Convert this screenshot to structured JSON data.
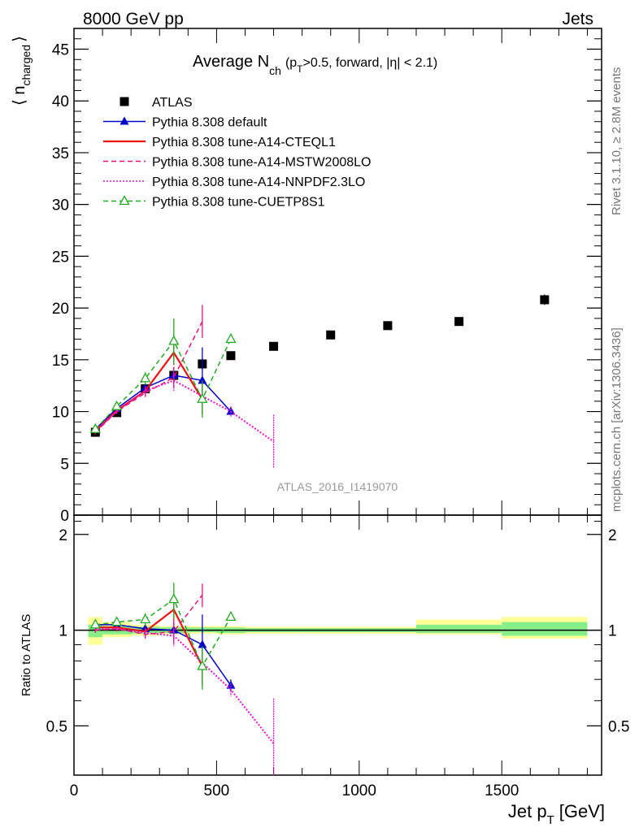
{
  "header": {
    "left": "8000 GeV pp",
    "right": "Jets"
  },
  "side_labels": {
    "rivet": "Rivet 3.1.10, ≥ 2.8M events",
    "mcplots": "mcplots.cern.ch [arXiv:1306.3436]"
  },
  "chart_data": [
    {
      "type": "scatter",
      "panel": "main",
      "title_main": "Average N",
      "title_sub": "ch",
      "title_cut": "(p",
      "title_cut_sub": "T",
      "title_rest": ">0.5, forward, |η| < 2.1)",
      "ylabel": "⟨ n",
      "ylabel_sub": "charged",
      "ylabel_close": "⟩",
      "watermark": "ATLAS_2016_I1419070",
      "xlim": [
        0,
        1850
      ],
      "ylim": [
        0,
        47
      ],
      "yticks": [
        0,
        5,
        10,
        15,
        20,
        25,
        30,
        35,
        40,
        45
      ],
      "grid": false,
      "legend_position": "top-left",
      "series": [
        {
          "name": "ATLAS",
          "style": "data",
          "color": "#000000",
          "x": [
            75,
            150,
            250,
            350,
            450,
            550,
            700,
            900,
            1100,
            1350,
            1650
          ],
          "y": [
            8.0,
            9.9,
            12.2,
            13.5,
            14.6,
            15.4,
            16.3,
            17.4,
            18.3,
            18.7,
            20.8
          ],
          "yerr": [
            0.2,
            0.2,
            0.3,
            0.4,
            0.5,
            0.4,
            0.3,
            0.3,
            0.3,
            0.4,
            0.5
          ]
        },
        {
          "name": "Pythia 8.308 default",
          "style": "solid-triangle",
          "color": "#0000cc",
          "x": [
            75,
            150,
            250,
            350,
            450,
            550
          ],
          "y": [
            8.3,
            10.3,
            12.3,
            13.5,
            13.0,
            10.0
          ],
          "yerr": [
            0.2,
            0.2,
            0.4,
            0.8,
            3.2,
            0.4
          ]
        },
        {
          "name": "Pythia 8.308 tune-A14-CTEQL1",
          "style": "solid",
          "color": "#ee1111",
          "x": [
            75,
            150,
            250,
            350,
            450
          ],
          "y": [
            8.1,
            10.1,
            12.0,
            15.7,
            11.2
          ],
          "yerr": [
            0.2,
            0.2,
            0.4,
            1.2,
            1.5
          ]
        },
        {
          "name": "Pythia 8.308 tune-A14-MSTW2008LO",
          "style": "dashed",
          "color": "#ee1177",
          "x": [
            75,
            150,
            250,
            350,
            450
          ],
          "y": [
            8.0,
            10.0,
            11.8,
            13.3,
            18.7
          ],
          "yerr": [
            0.2,
            0.2,
            0.4,
            1.0,
            1.6
          ]
        },
        {
          "name": "Pythia 8.308 tune-A14-NNPDF2.3LO",
          "style": "dotted",
          "color": "#ee11cc",
          "x": [
            75,
            150,
            250,
            350,
            450,
            550,
            700
          ],
          "y": [
            8.1,
            10.0,
            12.0,
            13.0,
            11.5,
            10.0,
            7.1
          ],
          "yerr": [
            0.2,
            0.2,
            0.4,
            1.0,
            1.2,
            0.5,
            2.6
          ]
        },
        {
          "name": "Pythia 8.308 tune-CUETP8S1",
          "style": "dashed-open-triangle",
          "color": "#22aa22",
          "x": [
            75,
            150,
            250,
            350,
            450,
            550
          ],
          "y": [
            8.3,
            10.5,
            13.2,
            16.8,
            11.2,
            17.0
          ],
          "yerr": [
            0.2,
            0.3,
            0.6,
            2.2,
            1.8,
            0.3
          ]
        }
      ]
    },
    {
      "type": "scatter",
      "panel": "ratio",
      "ylabel": "Ratio to ATLAS",
      "xlabel": "Jet p",
      "xlabel_sub": "T",
      "xlabel_unit": "[GeV]",
      "xlim": [
        0,
        1850
      ],
      "ylim": [
        0.35,
        2.3
      ],
      "xticks": [
        0,
        500,
        1000,
        1500
      ],
      "yticks": [
        0.5,
        1,
        2
      ],
      "reference_line": 1,
      "band_inner": {
        "color": "#88ee88",
        "bins": [
          [
            50,
            100,
            0.95,
            1.04
          ],
          [
            100,
            200,
            0.97,
            1.03
          ],
          [
            200,
            300,
            0.975,
            1.025
          ],
          [
            300,
            400,
            0.98,
            1.02
          ],
          [
            400,
            500,
            0.985,
            1.02
          ],
          [
            500,
            600,
            0.98,
            1.02
          ],
          [
            600,
            800,
            0.985,
            1.015
          ],
          [
            800,
            1000,
            0.985,
            1.015
          ],
          [
            1000,
            1200,
            0.985,
            1.015
          ],
          [
            1200,
            1500,
            0.98,
            1.04
          ],
          [
            1500,
            1800,
            0.96,
            1.06
          ]
        ]
      },
      "band_outer": {
        "color": "#ffff99",
        "bins": [
          [
            50,
            100,
            0.9,
            1.1
          ],
          [
            100,
            200,
            0.95,
            1.06
          ],
          [
            200,
            300,
            0.96,
            1.04
          ],
          [
            300,
            400,
            0.97,
            1.03
          ],
          [
            400,
            500,
            0.975,
            1.03
          ],
          [
            500,
            600,
            0.97,
            1.03
          ],
          [
            600,
            800,
            0.975,
            1.025
          ],
          [
            800,
            1000,
            0.975,
            1.025
          ],
          [
            1000,
            1200,
            0.975,
            1.025
          ],
          [
            1200,
            1500,
            0.97,
            1.08
          ],
          [
            1500,
            1800,
            0.94,
            1.1
          ]
        ]
      },
      "series": [
        {
          "name": "Pythia 8.308 default",
          "style": "solid-triangle",
          "color": "#0000cc",
          "x": [
            75,
            150,
            250,
            350,
            450,
            550
          ],
          "y": [
            1.04,
            1.04,
            1.01,
            1.0,
            0.9,
            0.67
          ],
          "yerr": [
            0.02,
            0.02,
            0.03,
            0.06,
            0.22,
            0.03
          ]
        },
        {
          "name": "Pythia 8.308 tune-A14-CTEQL1",
          "style": "solid",
          "color": "#ee1111",
          "x": [
            75,
            150,
            250,
            350,
            450
          ],
          "y": [
            1.02,
            1.02,
            0.99,
            1.16,
            0.77
          ],
          "yerr": [
            0.02,
            0.02,
            0.03,
            0.09,
            0.1
          ]
        },
        {
          "name": "Pythia 8.308 tune-A14-MSTW2008LO",
          "style": "dashed",
          "color": "#ee1177",
          "x": [
            75,
            150,
            250,
            350,
            450
          ],
          "y": [
            1.0,
            1.01,
            0.97,
            0.99,
            1.29
          ],
          "yerr": [
            0.02,
            0.02,
            0.03,
            0.08,
            0.11
          ]
        },
        {
          "name": "Pythia 8.308 tune-A14-NNPDF2.3LO",
          "style": "dotted",
          "color": "#ee11cc",
          "x": [
            75,
            150,
            250,
            350,
            450,
            550,
            700
          ],
          "y": [
            1.01,
            1.01,
            0.98,
            0.96,
            0.79,
            0.65,
            0.44
          ],
          "yerr": [
            0.02,
            0.02,
            0.03,
            0.07,
            0.08,
            0.03,
            0.17
          ]
        },
        {
          "name": "Pythia 8.308 tune-CUETP8S1",
          "style": "dashed-open-triangle",
          "color": "#22aa22",
          "x": [
            75,
            150,
            250,
            350,
            450,
            550
          ],
          "y": [
            1.04,
            1.06,
            1.08,
            1.25,
            0.77,
            1.1
          ],
          "yerr": [
            0.02,
            0.03,
            0.05,
            0.16,
            0.12,
            0.02
          ]
        }
      ]
    }
  ]
}
